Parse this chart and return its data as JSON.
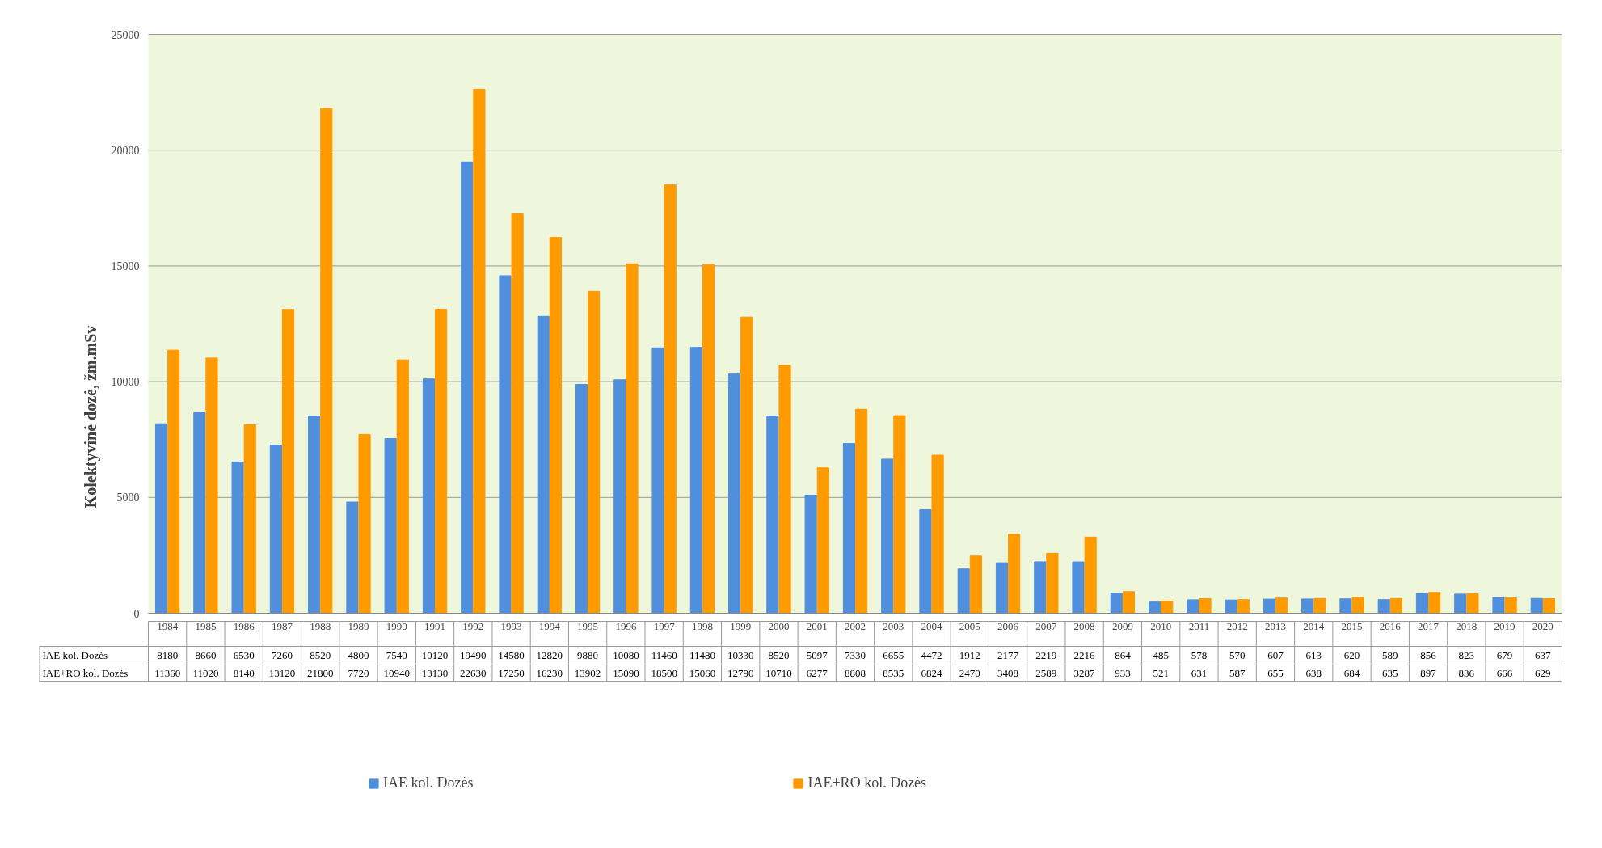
{
  "chart_data": {
    "type": "bar",
    "ylabel": "Kolektyvinė dozė, žm.mSv",
    "categories": [
      "1984",
      "1985",
      "1986",
      "1987",
      "1988",
      "1989",
      "1990",
      "1991",
      "1992",
      "1993",
      "1994",
      "1995",
      "1996",
      "1997",
      "1998",
      "1999",
      "2000",
      "2001",
      "2002",
      "2003",
      "2004",
      "2005",
      "2006",
      "2007",
      "2008",
      "2009",
      "2010",
      "2011",
      "2012",
      "2013",
      "2014",
      "2015",
      "2016",
      "2017",
      "2018",
      "2019",
      "2020"
    ],
    "series": [
      {
        "name": "IAE kol. Dozės",
        "color": "#4f8fdc",
        "values": [
          8180,
          8660,
          6530,
          7260,
          8520,
          4800,
          7540,
          10120,
          19490,
          14580,
          12820,
          9880,
          10080,
          11460,
          11480,
          10330,
          8520,
          5097,
          7330,
          6655,
          4472,
          1912,
          2177,
          2219,
          2216,
          864,
          485,
          578,
          570,
          607,
          613,
          620,
          589,
          856,
          823,
          679,
          637
        ]
      },
      {
        "name": "IAE+RO kol. Dozės",
        "color": "#ff9a00",
        "values": [
          11360,
          11020,
          8140,
          13120,
          21800,
          7720,
          10940,
          13130,
          22630,
          17250,
          16230,
          13902,
          15090,
          18500,
          15060,
          12790,
          10710,
          6277,
          8808,
          8535,
          6824,
          2470,
          3408,
          2589,
          3287,
          933,
          521,
          631,
          587,
          655,
          638,
          684,
          635,
          897,
          836,
          666,
          629
        ]
      }
    ],
    "ylim": [
      0,
      25000
    ],
    "yticks": [
      0,
      5000,
      10000,
      15000,
      20000,
      25000
    ],
    "grid": "y",
    "legend": "bottom",
    "data_labels": true
  }
}
